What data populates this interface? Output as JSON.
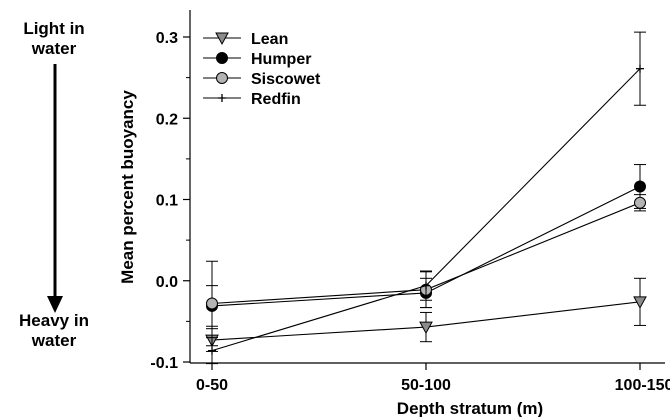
{
  "side_annotations": {
    "top": [
      "Light in",
      "water"
    ],
    "bottom": [
      "Heavy in",
      "water"
    ]
  },
  "chart_data": {
    "type": "line",
    "title": "",
    "xlabel": "Depth stratum (m)",
    "ylabel": "Mean percent buoyancy",
    "categories": [
      "0-50",
      "50-100",
      "100-150"
    ],
    "ylim": [
      -0.1,
      0.3
    ],
    "yticks": [
      -0.1,
      0.0,
      0.1,
      0.2,
      0.3
    ],
    "ytick_labels": [
      "-0.1",
      "0.0",
      "0.1",
      "0.2",
      "0.3"
    ],
    "grid": false,
    "legend_position": "top-left",
    "series": [
      {
        "name": "Lean",
        "marker": "triangle-down",
        "marker_fill": "#8c8c8c",
        "values": [
          -0.073,
          -0.057,
          -0.026
        ],
        "error": [
          0.014,
          0.018,
          0.029
        ]
      },
      {
        "name": "Humper",
        "marker": "circle",
        "marker_fill": "#000000",
        "values": [
          -0.031,
          -0.015,
          0.116
        ],
        "error": [
          0.025,
          0.018,
          0.027
        ]
      },
      {
        "name": "Siscowet",
        "marker": "circle",
        "marker_fill": "#b4b4b4",
        "values": [
          -0.028,
          -0.011,
          0.096
        ],
        "error": [
          0.052,
          0.022,
          0.01
        ]
      },
      {
        "name": "Redfin",
        "marker": "plus",
        "marker_fill": "#000000",
        "values": [
          -0.086,
          -0.006,
          0.261
        ],
        "error": [
          0.016,
          0.018,
          0.045
        ]
      }
    ]
  }
}
